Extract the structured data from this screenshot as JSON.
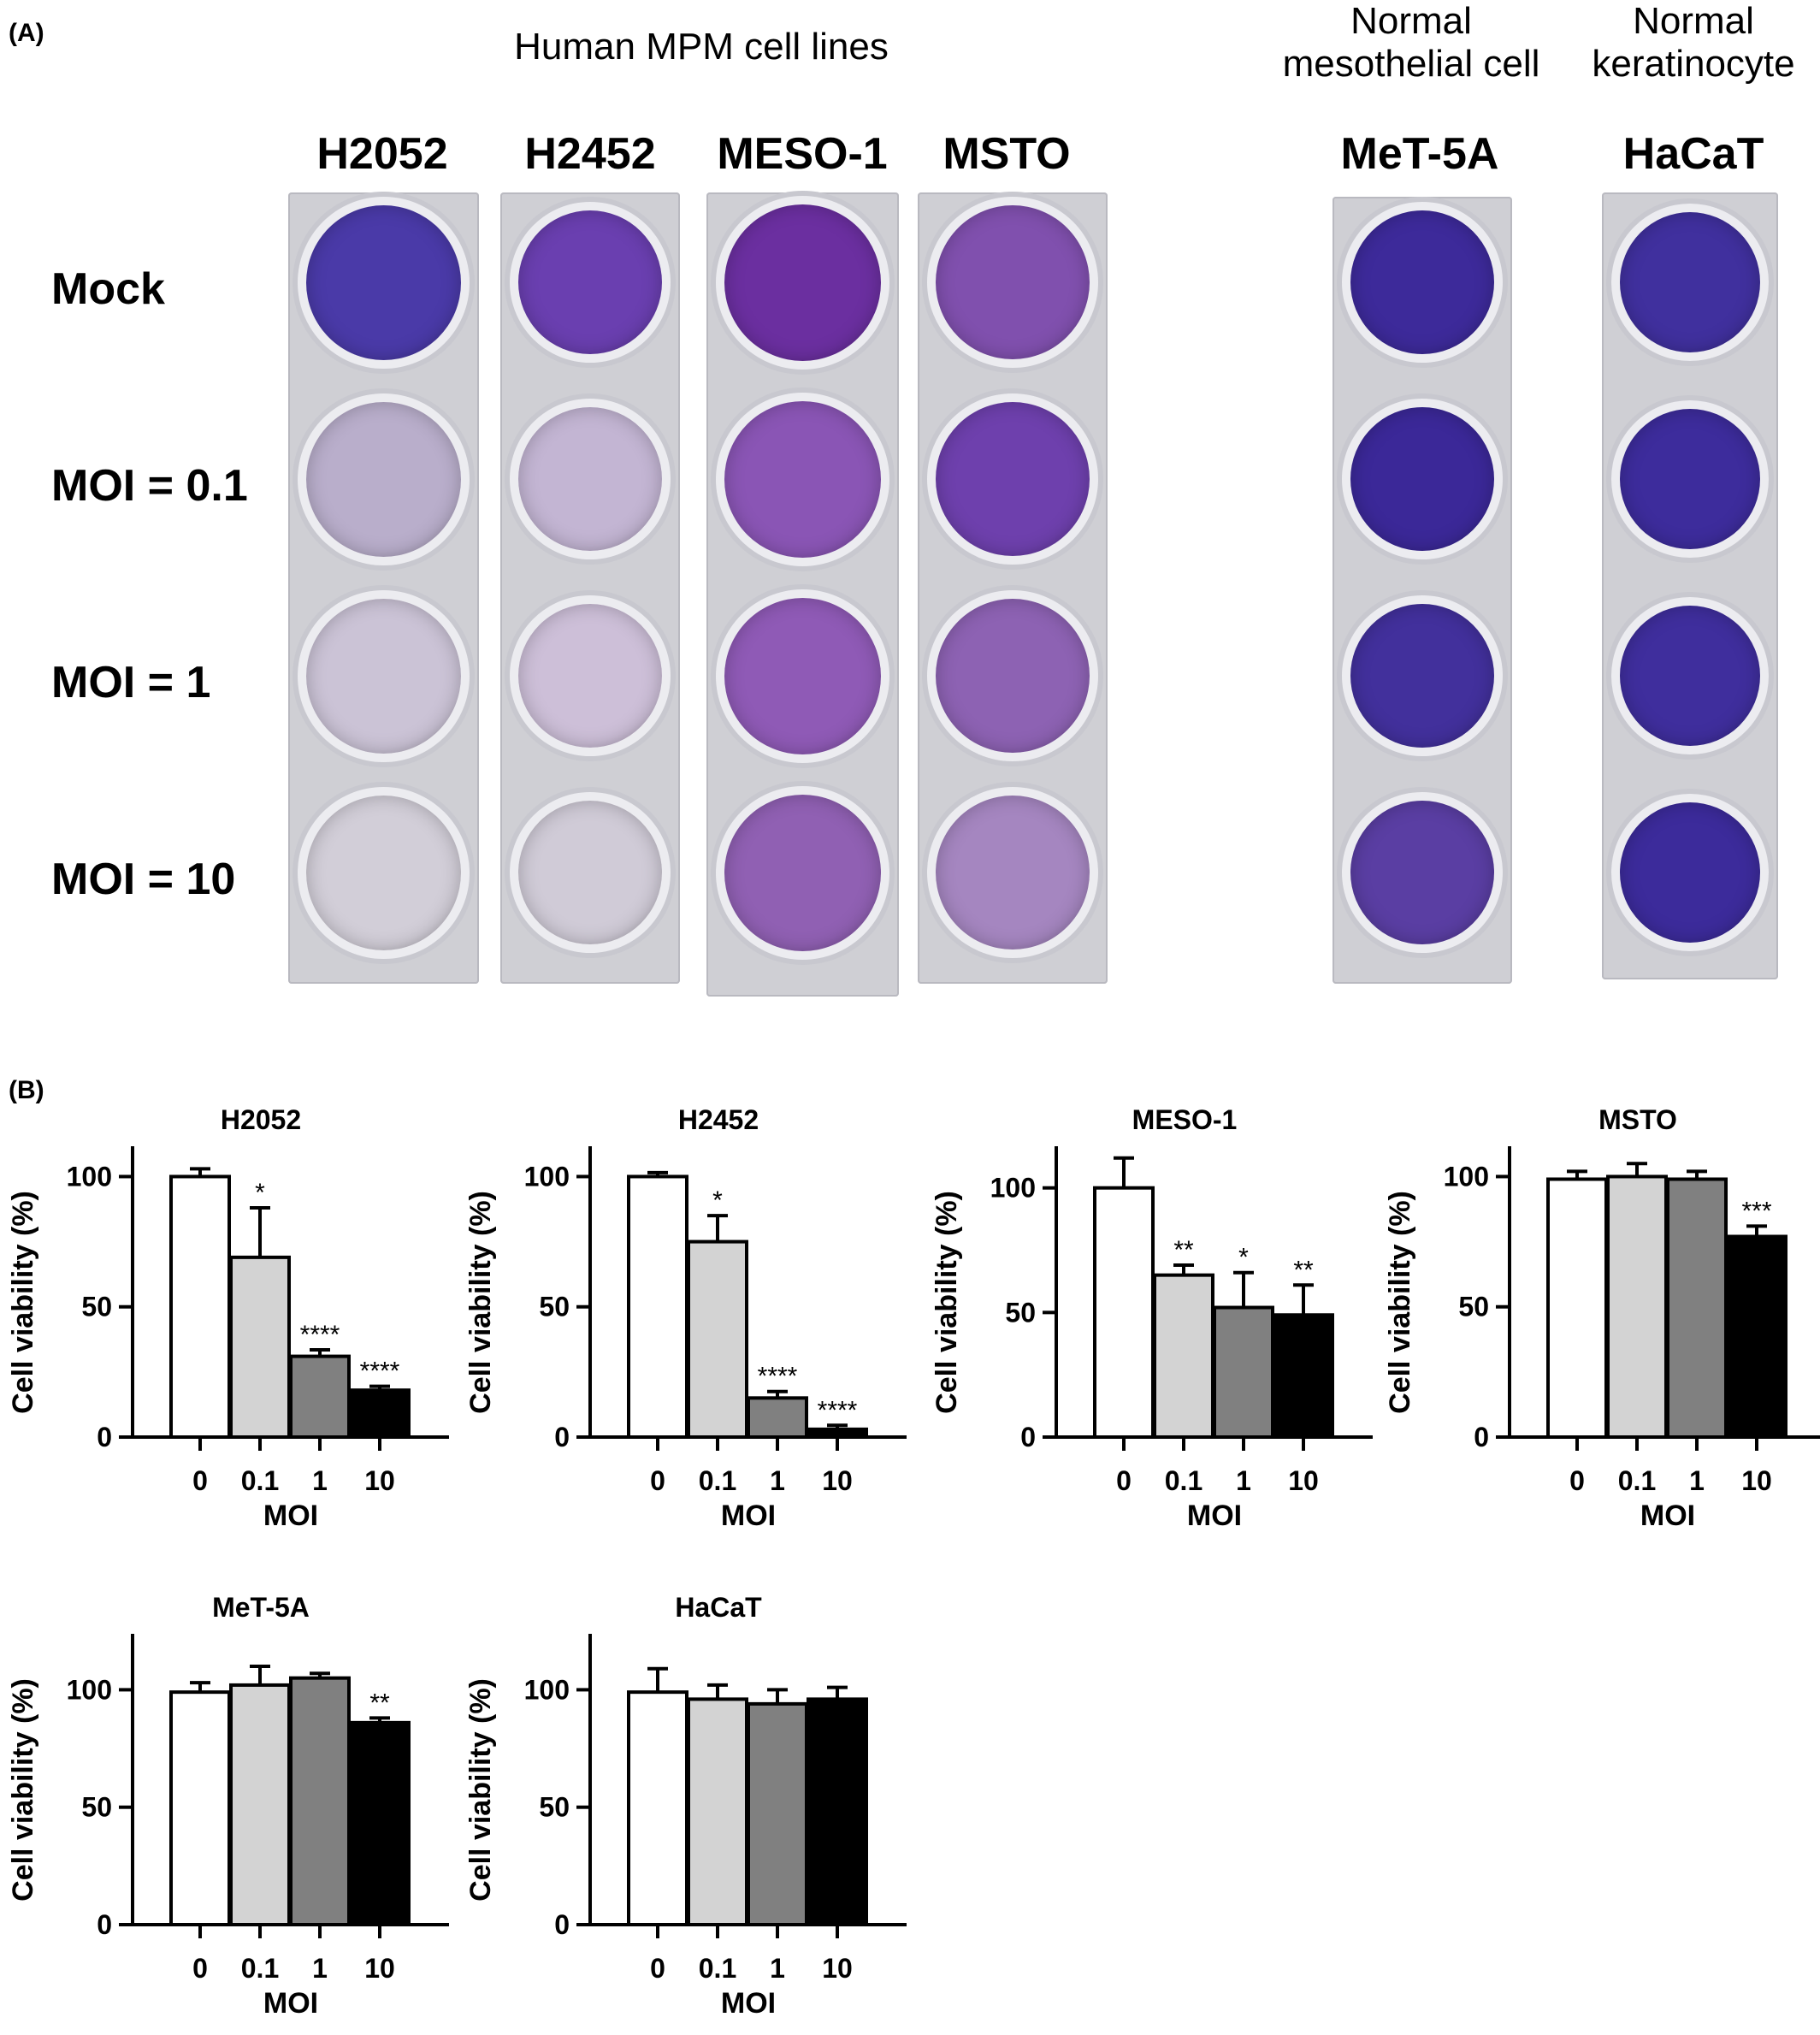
{
  "panel_a": {
    "label": "(A)",
    "group_mpm": "Human MPM cell lines",
    "group_normal_meso": [
      "Normal",
      "mesothelial cell"
    ],
    "group_normal_kera": [
      "Normal",
      "keratinocyte"
    ],
    "columns": [
      "H2052",
      "H2452",
      "MESO-1",
      "MSTO",
      "MeT-5A",
      "HaCaT"
    ],
    "rows": [
      "Mock",
      "MOI = 0.1",
      "MOI = 1",
      "MOI = 10"
    ],
    "well_colors": [
      [
        "#4a3aa8",
        "#b9aecb",
        "#cbc3d6",
        "#d2ced8"
      ],
      [
        "#6a3fb0",
        "#c3b5d3",
        "#cdbfd8",
        "#d0cbd7"
      ],
      [
        "#6b2fa0",
        "#8a55b5",
        "#8f5ab6",
        "#9060b3"
      ],
      [
        "#8050ae",
        "#6e40ad",
        "#8d62b3",
        "#a586c0"
      ],
      [
        "#3d2a9a",
        "#3b2898",
        "#42309c",
        "#5a3ea3"
      ],
      [
        "#40309e",
        "#3d2c9c",
        "#3f2e9d",
        "#3c2b9b"
      ]
    ]
  },
  "panel_b": {
    "label": "(B)"
  },
  "chart_data": [
    {
      "type": "bar",
      "title": "H2052",
      "xlabel": "MOI",
      "ylabel": "Cell viability (%)",
      "categories": [
        "0",
        "0.1",
        "1",
        "10"
      ],
      "values": [
        100,
        69,
        31,
        18
      ],
      "errors": [
        3,
        19,
        2.5,
        1.5
      ],
      "significance": [
        "",
        "*",
        "****",
        "****"
      ],
      "ylim": [
        0,
        110
      ],
      "yticks": [
        0,
        50,
        100
      ],
      "colors": [
        "#ffffff",
        "#d3d3d3",
        "#808080",
        "#000000"
      ]
    },
    {
      "type": "bar",
      "title": "H2452",
      "xlabel": "MOI",
      "ylabel": "Cell viability (%)",
      "categories": [
        "0",
        "0.1",
        "1",
        "10"
      ],
      "values": [
        100,
        75,
        15,
        3
      ],
      "errors": [
        1.5,
        10,
        2.5,
        1.5
      ],
      "significance": [
        "",
        "*",
        "****",
        "****"
      ],
      "ylim": [
        0,
        110
      ],
      "yticks": [
        0,
        50,
        100
      ],
      "colors": [
        "#ffffff",
        "#d3d3d3",
        "#808080",
        "#000000"
      ]
    },
    {
      "type": "bar",
      "title": "MESO-1",
      "xlabel": "MOI",
      "ylabel": "Cell viability (%)",
      "categories": [
        "0",
        "0.1",
        "1",
        "10"
      ],
      "values": [
        100,
        65,
        52,
        49
      ],
      "errors": [
        12,
        4,
        14,
        12
      ],
      "significance": [
        "",
        "**",
        "*",
        "**"
      ],
      "ylim": [
        0,
        115
      ],
      "yticks": [
        0,
        50,
        100
      ],
      "colors": [
        "#ffffff",
        "#d3d3d3",
        "#808080",
        "#000000"
      ]
    },
    {
      "type": "bar",
      "title": "MSTO",
      "xlabel": "MOI",
      "ylabel": "Cell viability (%)",
      "categories": [
        "0",
        "0.1",
        "1",
        "10"
      ],
      "values": [
        99,
        100,
        99,
        77
      ],
      "errors": [
        3,
        5,
        3,
        4
      ],
      "significance": [
        "",
        "",
        "",
        "***"
      ],
      "ylim": [
        0,
        110
      ],
      "yticks": [
        0,
        50,
        100
      ],
      "colors": [
        "#ffffff",
        "#d3d3d3",
        "#808080",
        "#000000"
      ]
    },
    {
      "type": "bar",
      "title": "MeT-5A",
      "xlabel": "MOI",
      "ylabel": "Cell viability (%)",
      "categories": [
        "0",
        "0.1",
        "1",
        "10"
      ],
      "values": [
        99,
        102,
        105,
        86
      ],
      "errors": [
        4,
        8,
        2,
        2
      ],
      "significance": [
        "",
        "",
        "",
        "**"
      ],
      "ylim": [
        0,
        122
      ],
      "yticks": [
        0,
        50,
        100
      ],
      "colors": [
        "#ffffff",
        "#d3d3d3",
        "#808080",
        "#000000"
      ]
    },
    {
      "type": "bar",
      "title": "HaCaT",
      "xlabel": "MOI",
      "ylabel": "Cell viability (%)",
      "categories": [
        "0",
        "0.1",
        "1",
        "10"
      ],
      "values": [
        99,
        96,
        94,
        96
      ],
      "errors": [
        10,
        6,
        6,
        5
      ],
      "significance": [
        "",
        "",
        "",
        ""
      ],
      "ylim": [
        0,
        122
      ],
      "yticks": [
        0,
        50,
        100
      ],
      "colors": [
        "#ffffff",
        "#d3d3d3",
        "#808080",
        "#000000"
      ]
    }
  ]
}
